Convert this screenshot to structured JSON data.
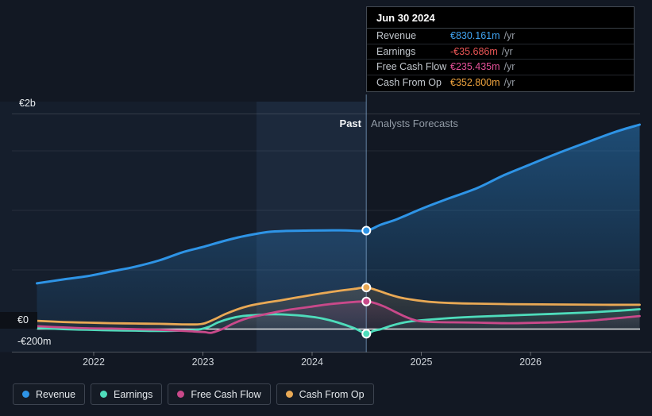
{
  "tooltip": {
    "date": "Jun 30 2024",
    "rows": [
      {
        "label": "Revenue",
        "value": "€830.161m",
        "suffix": "/yr",
        "color": "#41a3f0"
      },
      {
        "label": "Earnings",
        "value": "-€35.686m",
        "suffix": "/yr",
        "color": "#ec5656"
      },
      {
        "label": "Free Cash Flow",
        "value": "€235.435m",
        "suffix": "/yr",
        "color": "#e45098"
      },
      {
        "label": "Cash From Op",
        "value": "€352.800m",
        "suffix": "/yr",
        "color": "#f0a43e"
      }
    ]
  },
  "labels": {
    "past": "Past",
    "forecast": "Analysts Forecasts"
  },
  "y_axis": {
    "top": "€2b",
    "zero": "€0",
    "bottom": "-€200m"
  },
  "legend": [
    {
      "label": "Revenue",
      "color": "#2e94e6"
    },
    {
      "label": "Earnings",
      "color": "#4edcbb"
    },
    {
      "label": "Free Cash Flow",
      "color": "#c9498a"
    },
    {
      "label": "Cash From Op",
      "color": "#e9a955"
    }
  ],
  "chart_data": {
    "type": "line",
    "unit": "€ millions per year",
    "title": "Earnings and Revenue Growth — Past vs Analysts Forecasts",
    "x_ticks": [
      2022,
      2023,
      2024,
      2025,
      2026
    ],
    "x_range": [
      2021.48,
      2027.0
    ],
    "marker_x": 2024.497,
    "marker_date": "Jun 30 2024",
    "grid": true,
    "legend_position": "bottom",
    "series": [
      {
        "name": "Revenue",
        "color": "#2e94e6",
        "width": 3,
        "fill_alpha_top": 0.42,
        "fill_alpha_bottom": 0.08,
        "points": [
          [
            2021.48,
            387
          ],
          [
            2021.72,
            420
          ],
          [
            2021.94,
            447
          ],
          [
            2022.16,
            487
          ],
          [
            2022.38,
            527
          ],
          [
            2022.6,
            580
          ],
          [
            2022.81,
            647
          ],
          [
            2023,
            693
          ],
          [
            2023.18,
            740
          ],
          [
            2023.32,
            773
          ],
          [
            2023.47,
            800
          ],
          [
            2023.61,
            820
          ],
          [
            2023.76,
            827
          ],
          [
            2023.94,
            830
          ],
          [
            2024.12,
            832
          ],
          [
            2024.31,
            832
          ],
          [
            2024.497,
            830.161
          ],
          [
            2024.63,
            880
          ],
          [
            2024.78,
            927
          ],
          [
            2025,
            1013
          ],
          [
            2025.21,
            1087
          ],
          [
            2025.51,
            1187
          ],
          [
            2025.75,
            1293
          ],
          [
            2026,
            1387
          ],
          [
            2026.23,
            1473
          ],
          [
            2026.52,
            1573
          ],
          [
            2026.78,
            1660
          ],
          [
            2027,
            1720
          ]
        ]
      },
      {
        "name": "Cash From Op",
        "color": "#e9a955",
        "width": 2.8,
        "fill_alpha_top": 0.16,
        "fill_alpha_bottom": 0.05,
        "points": [
          [
            2021.48,
            73
          ],
          [
            2021.72,
            63
          ],
          [
            2021.94,
            57
          ],
          [
            2022.16,
            53
          ],
          [
            2022.38,
            50
          ],
          [
            2022.6,
            47
          ],
          [
            2022.81,
            43
          ],
          [
            2022.95,
            43
          ],
          [
            2023.02,
            53
          ],
          [
            2023.11,
            87
          ],
          [
            2023.2,
            127
          ],
          [
            2023.31,
            167
          ],
          [
            2023.43,
            200
          ],
          [
            2023.56,
            223
          ],
          [
            2023.7,
            243
          ],
          [
            2023.87,
            270
          ],
          [
            2024.05,
            297
          ],
          [
            2024.23,
            323
          ],
          [
            2024.38,
            340
          ],
          [
            2024.497,
            352.8
          ],
          [
            2024.6,
            327
          ],
          [
            2024.71,
            293
          ],
          [
            2024.81,
            267
          ],
          [
            2024.92,
            250
          ],
          [
            2025.07,
            233
          ],
          [
            2025.25,
            223
          ],
          [
            2025.47,
            217
          ],
          [
            2025.8,
            213
          ],
          [
            2026.23,
            210
          ],
          [
            2026.67,
            207
          ],
          [
            2027,
            207
          ]
        ]
      },
      {
        "name": "Earnings",
        "color": "#4edcbb",
        "width": 2.8,
        "fill_alpha_top": 0.12,
        "fill_alpha_bottom": 0.03,
        "points": [
          [
            2021.48,
            13
          ],
          [
            2021.72,
            3
          ],
          [
            2021.94,
            -3
          ],
          [
            2022.16,
            -7
          ],
          [
            2022.38,
            -10
          ],
          [
            2022.6,
            -13
          ],
          [
            2022.81,
            -10
          ],
          [
            2022.96,
            0
          ],
          [
            2023.05,
            20
          ],
          [
            2023.14,
            60
          ],
          [
            2023.25,
            93
          ],
          [
            2023.36,
            113
          ],
          [
            2023.51,
            123
          ],
          [
            2023.65,
            127
          ],
          [
            2023.8,
            123
          ],
          [
            2023.94,
            113
          ],
          [
            2024.09,
            93
          ],
          [
            2024.23,
            60
          ],
          [
            2024.38,
            13
          ],
          [
            2024.497,
            -35.686
          ],
          [
            2024.56,
            -13
          ],
          [
            2024.63,
            3
          ],
          [
            2024.71,
            27
          ],
          [
            2024.81,
            53
          ],
          [
            2024.92,
            70
          ],
          [
            2025.07,
            83
          ],
          [
            2025.29,
            97
          ],
          [
            2025.51,
            107
          ],
          [
            2025.8,
            117
          ],
          [
            2026.09,
            127
          ],
          [
            2026.38,
            137
          ],
          [
            2026.67,
            150
          ],
          [
            2026.85,
            160
          ],
          [
            2027,
            170
          ]
        ]
      },
      {
        "name": "Free Cash Flow",
        "color": "#c9498a",
        "width": 2.8,
        "fill_alpha_top": 0.14,
        "fill_alpha_bottom": 0.04,
        "points": [
          [
            2021.48,
            27
          ],
          [
            2021.72,
            17
          ],
          [
            2021.94,
            10
          ],
          [
            2022.16,
            7
          ],
          [
            2022.38,
            3
          ],
          [
            2022.6,
            -3
          ],
          [
            2022.78,
            -10
          ],
          [
            2022.92,
            -17
          ],
          [
            2023.02,
            -23
          ],
          [
            2023.08,
            -27
          ],
          [
            2023.18,
            5
          ],
          [
            2023.29,
            55
          ],
          [
            2023.4,
            93
          ],
          [
            2023.53,
            120
          ],
          [
            2023.65,
            143
          ],
          [
            2023.8,
            167
          ],
          [
            2023.98,
            190
          ],
          [
            2024.16,
            213
          ],
          [
            2024.34,
            228
          ],
          [
            2024.497,
            235.435
          ],
          [
            2024.57,
            223
          ],
          [
            2024.66,
            193
          ],
          [
            2024.75,
            153
          ],
          [
            2024.84,
            113
          ],
          [
            2024.91,
            87
          ],
          [
            2024.98,
            70
          ],
          [
            2025.11,
            63
          ],
          [
            2025.29,
            60
          ],
          [
            2025.51,
            57
          ],
          [
            2025.8,
            53
          ],
          [
            2026.09,
            57
          ],
          [
            2026.3,
            63
          ],
          [
            2026.52,
            73
          ],
          [
            2026.74,
            90
          ],
          [
            2027,
            113
          ]
        ]
      }
    ]
  }
}
